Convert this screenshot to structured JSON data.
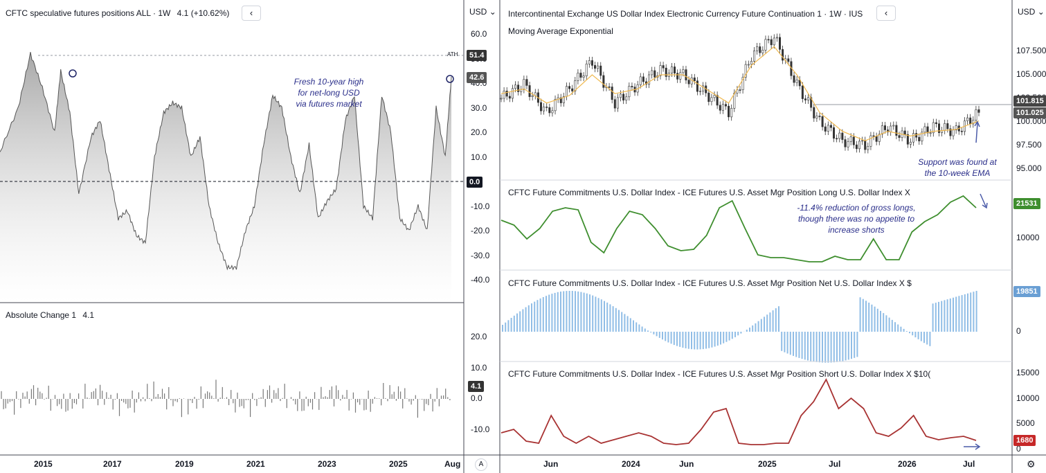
{
  "left_panel": {
    "title": "CFTC speculative futures positions ALL · 1W",
    "value": "4.1 (+10.62%)",
    "currency": "USD",
    "ath_label": "ATH",
    "ath_value": "51.4",
    "last_value": "42.6",
    "zero_value": "0.0",
    "y_ticks": [
      "60.0",
      "50.0",
      "40.0",
      "30.0",
      "20.0",
      "10.0",
      "0.0",
      "-10.0",
      "-20.0",
      "-30.0",
      "-40.0"
    ],
    "annotation": [
      "Fresh 10-year high",
      "for net-long USD",
      "via futures market"
    ]
  },
  "left_lower": {
    "title": "Absolute Change 1",
    "value": "4.1",
    "last_value": "4.1",
    "y_ticks": [
      "20.0",
      "10.0",
      "0.0",
      "-10.0"
    ]
  },
  "left_x_ticks": [
    "2015",
    "2017",
    "2019",
    "2021",
    "2023",
    "2025",
    "Aug"
  ],
  "right_panel": {
    "title": "Intercontinental Exchange US Dollar Index Electronic Currency Future Continuation 1 · 1W · IUS",
    "indicator": "Moving Average Exponential",
    "currency": "USD",
    "y_ticks": [
      "107.500",
      "105.000",
      "102.500",
      "100.000",
      "97.500",
      "95.000"
    ],
    "last_high": "101.815",
    "last_close": "101.025",
    "annotation": [
      "Support was found at",
      "the 10-week EMA"
    ]
  },
  "long_panel": {
    "title": "CFTC Future Commitments U.S. Dollar Index - ICE Futures U.S. Asset Mgr Position Long U.S. Dollar Index X",
    "last_value": "21531",
    "y_ticks": [
      "10000"
    ],
    "annotation": [
      "-11.4% reduction of gross longs,",
      "though there was no appetite to",
      "increase shorts"
    ]
  },
  "net_panel": {
    "title": "CFTC Future Commitments U.S. Dollar Index - ICE Futures U.S. Asset Mgr Position Net U.S. Dollar Index X $",
    "last_value": "19851",
    "y_ticks": [
      "0"
    ]
  },
  "short_panel": {
    "title": "CFTC Future Commitments U.S. Dollar Index - ICE Futures U.S. Asset Mgr Position Short U.S. Dollar Index X $10(",
    "last_value": "1680",
    "y_ticks": [
      "15000",
      "10000",
      "5000",
      "0"
    ]
  },
  "right_x_ticks": [
    "Jun",
    "2024",
    "Jun",
    "2025",
    "Jul",
    "2026",
    "Jul"
  ],
  "buttons": {
    "collapse": "‹",
    "auto": "A",
    "settings": "⚙"
  },
  "colors": {
    "net_spec_fill": "#bdbdbd",
    "net_spec_line": "#555555",
    "abs_change": "#787878",
    "candle": "#333333",
    "ema": "#f0b84d",
    "long_line": "#3e8e2e",
    "long_badge": "#3e8e2e",
    "net_bars": "#90bde6",
    "net_badge": "#6a9fd4",
    "short_line": "#a83232",
    "short_badge": "#c62828",
    "annotation": "#2a2e8a",
    "badge_dark": "#333333"
  },
  "chart_data": [
    {
      "type": "area",
      "title": "CFTC speculative futures positions ALL",
      "ylim": [
        -45,
        62
      ],
      "x": [
        "2014-03",
        "2014-09",
        "2015-01",
        "2015-05",
        "2015-09",
        "2015-11",
        "2016-02",
        "2016-05",
        "2016-09",
        "2016-12",
        "2017-03",
        "2017-06",
        "2017-09",
        "2017-12",
        "2018-03",
        "2018-06",
        "2018-09",
        "2018-12",
        "2019-03",
        "2019-06",
        "2019-09",
        "2019-12",
        "2020-03",
        "2020-06",
        "2020-09",
        "2020-12",
        "2021-03",
        "2021-06",
        "2021-09",
        "2021-12",
        "2022-03",
        "2022-06",
        "2022-09",
        "2022-12",
        "2023-03",
        "2023-06",
        "2023-09",
        "2023-12",
        "2024-03",
        "2024-06",
        "2024-09",
        "2024-12",
        "2025-03",
        "2025-06",
        "2025-09",
        "2025-12",
        "2026-03",
        "2026-06",
        "2026-08"
      ],
      "values": [
        12,
        30,
        52,
        38,
        20,
        45,
        28,
        -5,
        18,
        25,
        5,
        -15,
        -12,
        -22,
        -25,
        10,
        28,
        32,
        30,
        10,
        18,
        -10,
        -25,
        -35,
        -35,
        -20,
        -10,
        15,
        35,
        30,
        10,
        -5,
        15,
        -15,
        -8,
        -3,
        25,
        35,
        -10,
        -15,
        35,
        20,
        -15,
        -20,
        -10,
        -20,
        30,
        10,
        42.6
      ],
      "reference_lines": {
        "ATH": 51.4,
        "zero": 0.0
      }
    },
    {
      "type": "bar",
      "title": "Absolute Change 1",
      "ylim": [
        -15,
        25
      ],
      "last": 4.1
    },
    {
      "type": "line",
      "title": "Intercontinental Exchange US Dollar Index Electronic Currency Future Continuation 1",
      "ylim": [
        94,
        109.5
      ],
      "x": [
        "2023-03",
        "2023-05",
        "2023-06",
        "2023-08",
        "2023-10",
        "2023-12",
        "2024-02",
        "2024-04",
        "2024-06",
        "2024-08",
        "2024-10",
        "2024-12",
        "2025-01",
        "2025-03",
        "2025-05",
        "2025-07",
        "2025-09",
        "2025-11",
        "2026-01",
        "2026-03",
        "2026-05",
        "2026-07"
      ],
      "close": [
        102.5,
        104,
        101,
        103.5,
        106.5,
        102,
        104,
        105.5,
        105,
        103,
        101,
        107,
        109,
        104,
        100,
        98,
        97.5,
        99.5,
        98,
        99.5,
        99,
        101.0
      ],
      "ema10": [
        103,
        103.5,
        102,
        102.8,
        105,
        103,
        103.5,
        105,
        105,
        103.5,
        102,
        106,
        108,
        105,
        101,
        99,
        98,
        99,
        98.5,
        99,
        99.2,
        100.1
      ],
      "price_lines": {
        "high": 101.815,
        "close": 101.025
      }
    },
    {
      "type": "line",
      "title": "Asset Mgr Position Long U.S. Dollar Index",
      "last": 21531
    },
    {
      "type": "bar",
      "title": "Asset Mgr Position Net U.S. Dollar Index",
      "last": 19851
    },
    {
      "type": "line",
      "title": "Asset Mgr Position Short U.S. Dollar Index",
      "ylim": [
        0,
        16000
      ],
      "last": 1680
    }
  ]
}
